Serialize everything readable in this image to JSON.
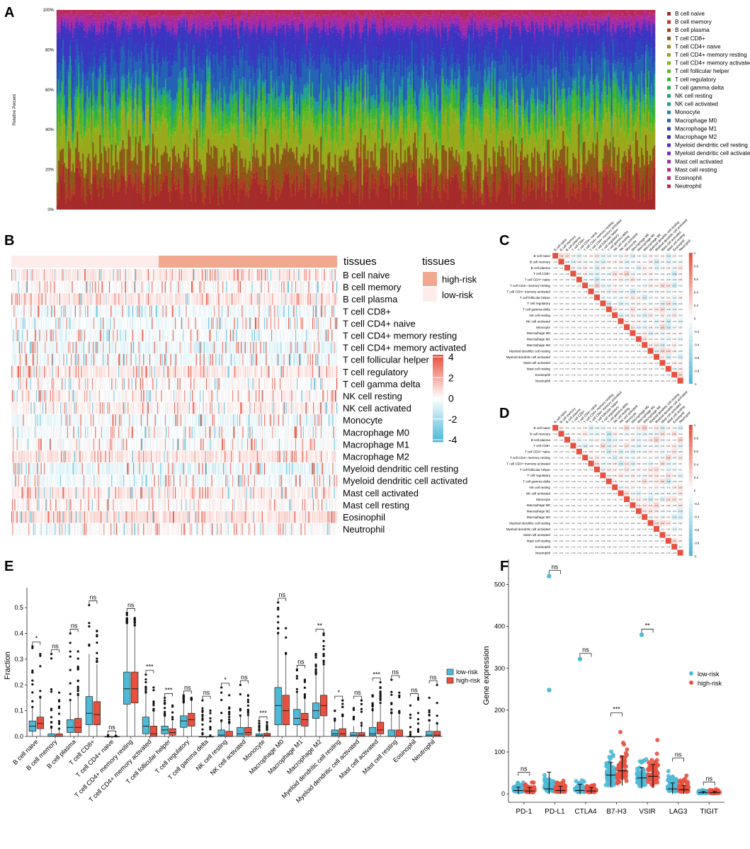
{
  "colors": {
    "low_risk": "#4fb9d6",
    "high_risk": "#e8513f",
    "heat_high": "#e8513f",
    "heat_low": "#4fb9d6",
    "tissue_high": "#f2a78f",
    "tissue_low": "#fdecea"
  },
  "cell_types": [
    "B cell naive",
    "B cell memory",
    "B cell plasma",
    "T cell CD8+",
    "T cell CD4+ naive",
    "T cell CD4+ memory resting",
    "T cell CD4+ memory activated",
    "T cell follicular helper",
    "T cell regulatory",
    "T cell gamma delta",
    "NK cell resting",
    "NK cell activated",
    "Monocyte",
    "Macrophage M0",
    "Macrophage M1",
    "Macrophage M2",
    "Myeloid dendritic cell resting",
    "Myeloid dendritic cell activated",
    "Mast cell activated",
    "Mast cell resting",
    "Eosinophil",
    "Neutrophil"
  ],
  "panels": {
    "a": {
      "label": "A"
    },
    "b": {
      "label": "B",
      "tissues_bar_label": "tissues",
      "legend_title": "tissues",
      "legend_high": "high-risk",
      "legend_low": "low-risk"
    },
    "c": {
      "label": "C"
    },
    "d": {
      "label": "D"
    },
    "e": {
      "label": "E"
    },
    "f": {
      "label": "F"
    }
  },
  "chart_data": [
    {
      "id": "A",
      "type": "bar",
      "subtype": "stacked-100",
      "ylabel": "Relative Percent",
      "yticks": [
        "0%",
        "20%",
        "40%",
        "60%",
        "80%",
        "100%"
      ],
      "ylim": [
        0,
        100
      ],
      "samples": 420,
      "series": [
        {
          "name": "B cell naive",
          "color": "#a52a2a"
        },
        {
          "name": "B cell memory",
          "color": "#b33a23"
        },
        {
          "name": "B cell plasma",
          "color": "#a0461a"
        },
        {
          "name": "T cell CD8+",
          "color": "#8a5a18"
        },
        {
          "name": "T cell CD4+ naive",
          "color": "#a08a18"
        },
        {
          "name": "T cell CD4+ memory resting",
          "color": "#9aa81c"
        },
        {
          "name": "T cell CD4+ memory activated",
          "color": "#86b81e"
        },
        {
          "name": "T cell follicular helper",
          "color": "#5ab828"
        },
        {
          "name": "T cell regulatory",
          "color": "#3cb432"
        },
        {
          "name": "T cell gamma delta",
          "color": "#2aa858"
        },
        {
          "name": "NK cell resting",
          "color": "#22a27c"
        },
        {
          "name": "NK cell activated",
          "color": "#1e9c98"
        },
        {
          "name": "Monocyte",
          "color": "#1e86a8"
        },
        {
          "name": "Macrophage M0",
          "color": "#2462b4"
        },
        {
          "name": "Macrophage M1",
          "color": "#2c44bc"
        },
        {
          "name": "Macrophage M2",
          "color": "#3a34c0"
        },
        {
          "name": "Myeloid dendritic cell resting",
          "color": "#5a2cbe"
        },
        {
          "name": "Myeloid dendritic cell activated",
          "color": "#7c2cba"
        },
        {
          "name": "Mast cell activated",
          "color": "#9a2aae"
        },
        {
          "name": "Mast cell resting",
          "color": "#b02a96"
        },
        {
          "name": "Eosinophil",
          "color": "#bc2a7a"
        },
        {
          "name": "Neutrophil",
          "color": "#b82a52"
        }
      ]
    },
    {
      "id": "B",
      "type": "heatmap",
      "columns": 420,
      "groups": [
        {
          "name": "low-risk",
          "count": 190
        },
        {
          "name": "high-risk",
          "count": 230
        }
      ],
      "scale_ticks": [
        4,
        2,
        0,
        -2,
        -4
      ],
      "rows": "cell_types"
    },
    {
      "id": "C",
      "type": "heatmap",
      "subtype": "correlation-lower-triangle",
      "scale_ticks": [
        "1",
        "0.8",
        "0.6",
        "0.4",
        "0.2",
        "0",
        "-0.2",
        "-0.4",
        "-0.6",
        "-0.8",
        "-1"
      ],
      "rows": "cell_types"
    },
    {
      "id": "D",
      "type": "heatmap",
      "subtype": "correlation-lower-triangle",
      "scale_ticks": [
        "1",
        "0.8",
        "0.6",
        "0.4",
        "0.2",
        "0",
        "-0.2",
        "-0.4",
        "-0.6",
        "-0.8",
        "-1"
      ],
      "rows": "cell_types"
    },
    {
      "id": "E",
      "type": "box",
      "ylabel": "Fraction",
      "ylim": [
        0,
        0.55
      ],
      "yticks": [
        "0.0",
        "0.1",
        "0.2",
        "0.3",
        "0.4",
        "0.5"
      ],
      "legend": [
        "low-risk",
        "high-risk"
      ],
      "categories": [
        "B cell naive",
        "B cell memory",
        "B cell plasma",
        "T cell CD8+",
        "T cell CD4+ naive",
        "T cell CD4+ memory resting",
        "T cell CD4+ memory activated",
        "T cell follicular helper",
        "T cell regulatory",
        "T cell gamma delta",
        "NK cell resting",
        "NK cell activated",
        "Monocyte",
        "Macrophage M0",
        "Macrophage M1",
        "Macrophage M2",
        "Myeloid dendritic cell resting",
        "Myeloid dendritic cell activated",
        "Mast cell activated",
        "Mast cell resting",
        "Eosinophil",
        "Neutrophil"
      ],
      "significance": [
        "*",
        "ns",
        "ns",
        "ns",
        "ns",
        "ns",
        "***",
        "***",
        "ns",
        "ns",
        "*",
        "ns",
        "***",
        "ns",
        "ns",
        "**",
        "*",
        "ns",
        "***",
        "ns",
        "ns",
        "ns"
      ],
      "low": [
        {
          "q1": 0.02,
          "med": 0.04,
          "q3": 0.06,
          "lo": 0.0,
          "hi": 0.11,
          "max": 0.35
        },
        {
          "q1": 0.0,
          "med": 0.0,
          "q3": 0.01,
          "lo": 0.0,
          "hi": 0.03,
          "max": 0.32
        },
        {
          "q1": 0.015,
          "med": 0.035,
          "q3": 0.065,
          "lo": 0.0,
          "hi": 0.14,
          "max": 0.4
        },
        {
          "q1": 0.045,
          "med": 0.09,
          "q3": 0.155,
          "lo": 0.0,
          "hi": 0.32,
          "max": 0.51
        },
        {
          "q1": 0.0,
          "med": 0.0,
          "q3": 0.0,
          "lo": 0.0,
          "hi": 0.0,
          "max": 0.005
        },
        {
          "q1": 0.125,
          "med": 0.185,
          "q3": 0.25,
          "lo": 0.0,
          "hi": 0.44,
          "max": 0.48
        },
        {
          "q1": 0.01,
          "med": 0.04,
          "q3": 0.075,
          "lo": 0.0,
          "hi": 0.17,
          "max": 0.24
        },
        {
          "q1": 0.01,
          "med": 0.025,
          "q3": 0.04,
          "lo": 0.0,
          "hi": 0.08,
          "max": 0.15
        },
        {
          "q1": 0.035,
          "med": 0.06,
          "q3": 0.08,
          "lo": 0.0,
          "hi": 0.13,
          "max": 0.16
        },
        {
          "q1": 0.0,
          "med": 0.0,
          "q3": 0.0,
          "lo": 0.0,
          "hi": 0.0,
          "max": 0.14
        },
        {
          "q1": 0.0,
          "med": 0.005,
          "q3": 0.025,
          "lo": 0.0,
          "hi": 0.06,
          "max": 0.19
        },
        {
          "q1": 0.0,
          "med": 0.01,
          "q3": 0.035,
          "lo": 0.0,
          "hi": 0.08,
          "max": 0.2
        },
        {
          "q1": 0.0,
          "med": 0.003,
          "q3": 0.01,
          "lo": 0.0,
          "hi": 0.02,
          "max": 0.06
        },
        {
          "q1": 0.045,
          "med": 0.12,
          "q3": 0.19,
          "lo": 0.0,
          "hi": 0.4,
          "max": 0.52
        },
        {
          "q1": 0.045,
          "med": 0.07,
          "q3": 0.105,
          "lo": 0.0,
          "hi": 0.17,
          "max": 0.26
        },
        {
          "q1": 0.07,
          "med": 0.1,
          "q3": 0.13,
          "lo": 0.0,
          "hi": 0.24,
          "max": 0.32
        },
        {
          "q1": 0.003,
          "med": 0.01,
          "q3": 0.025,
          "lo": 0.0,
          "hi": 0.06,
          "max": 0.1
        },
        {
          "q1": 0.0,
          "med": 0.005,
          "q3": 0.015,
          "lo": 0.0,
          "hi": 0.04,
          "max": 0.11
        },
        {
          "q1": 0.003,
          "med": 0.01,
          "q3": 0.035,
          "lo": 0.0,
          "hi": 0.1,
          "max": 0.16
        },
        {
          "q1": 0.0,
          "med": 0.0,
          "q3": 0.025,
          "lo": 0.0,
          "hi": 0.09,
          "max": 0.22
        },
        {
          "q1": 0.0,
          "med": 0.0,
          "q3": 0.0,
          "lo": 0.0,
          "hi": 0.0,
          "max": 0.12
        },
        {
          "q1": 0.0,
          "med": 0.005,
          "q3": 0.02,
          "lo": 0.0,
          "hi": 0.05,
          "max": 0.15
        }
      ],
      "high": [
        {
          "q1": 0.03,
          "med": 0.05,
          "q3": 0.075,
          "lo": 0.0,
          "hi": 0.15,
          "max": 0.32
        },
        {
          "q1": 0.0,
          "med": 0.0,
          "q3": 0.01,
          "lo": 0.0,
          "hi": 0.03,
          "max": 0.17
        },
        {
          "q1": 0.015,
          "med": 0.035,
          "q3": 0.07,
          "lo": 0.0,
          "hi": 0.16,
          "max": 0.33
        },
        {
          "q1": 0.045,
          "med": 0.085,
          "q3": 0.135,
          "lo": 0.0,
          "hi": 0.28,
          "max": 0.41
        },
        {
          "q1": 0.0,
          "med": 0.0,
          "q3": 0.0,
          "lo": 0.0,
          "hi": 0.0,
          "max": 0.003
        },
        {
          "q1": 0.13,
          "med": 0.185,
          "q3": 0.25,
          "lo": 0.0,
          "hi": 0.43,
          "max": 0.46
        },
        {
          "q1": 0.0,
          "med": 0.01,
          "q3": 0.04,
          "lo": 0.0,
          "hi": 0.1,
          "max": 0.19
        },
        {
          "q1": 0.005,
          "med": 0.015,
          "q3": 0.03,
          "lo": 0.0,
          "hi": 0.06,
          "max": 0.12
        },
        {
          "q1": 0.04,
          "med": 0.065,
          "q3": 0.09,
          "lo": 0.0,
          "hi": 0.14,
          "max": 0.15
        },
        {
          "q1": 0.0,
          "med": 0.0,
          "q3": 0.0,
          "lo": 0.0,
          "hi": 0.0,
          "max": 0.1
        },
        {
          "q1": 0.0,
          "med": 0.0,
          "q3": 0.02,
          "lo": 0.0,
          "hi": 0.05,
          "max": 0.16
        },
        {
          "q1": 0.005,
          "med": 0.015,
          "q3": 0.035,
          "lo": 0.0,
          "hi": 0.08,
          "max": 0.16
        },
        {
          "q1": 0.0,
          "med": 0.005,
          "q3": 0.012,
          "lo": 0.0,
          "hi": 0.025,
          "max": 0.055
        },
        {
          "q1": 0.045,
          "med": 0.1,
          "q3": 0.16,
          "lo": 0.0,
          "hi": 0.32,
          "max": 0.42
        },
        {
          "q1": 0.04,
          "med": 0.065,
          "q3": 0.09,
          "lo": 0.0,
          "hi": 0.15,
          "max": 0.22
        },
        {
          "q1": 0.08,
          "med": 0.12,
          "q3": 0.16,
          "lo": 0.0,
          "hi": 0.28,
          "max": 0.4
        },
        {
          "q1": 0.0,
          "med": 0.01,
          "q3": 0.03,
          "lo": 0.0,
          "hi": 0.07,
          "max": 0.14
        },
        {
          "q1": 0.0,
          "med": 0.005,
          "q3": 0.015,
          "lo": 0.0,
          "hi": 0.04,
          "max": 0.14
        },
        {
          "q1": 0.01,
          "med": 0.025,
          "q3": 0.055,
          "lo": 0.0,
          "hi": 0.13,
          "max": 0.21
        },
        {
          "q1": 0.0,
          "med": 0.0,
          "q3": 0.025,
          "lo": 0.0,
          "hi": 0.09,
          "max": 0.17
        },
        {
          "q1": 0.0,
          "med": 0.0,
          "q3": 0.0,
          "lo": 0.0,
          "hi": 0.0,
          "max": 0.15
        },
        {
          "q1": 0.0,
          "med": 0.005,
          "q3": 0.02,
          "lo": 0.0,
          "hi": 0.05,
          "max": 0.2
        }
      ]
    },
    {
      "id": "F",
      "type": "scatter",
      "subtype": "jitter-with-mean-sd",
      "ylabel": "Gene expression",
      "ylim": [
        -20,
        560
      ],
      "yticks": [
        "0",
        "100",
        "200",
        "300",
        "400",
        "500"
      ],
      "legend": [
        "low-risk",
        "high-risk"
      ],
      "categories": [
        "PD-1",
        "PD-L1",
        "CTLA4",
        "B7-H3",
        "VSIR",
        "LAG3",
        "TIGIT"
      ],
      "significance": [
        "ns",
        "ns",
        "ns",
        "***",
        "**",
        "ns",
        "ns"
      ],
      "low": [
        {
          "mean": 8,
          "sd": 8,
          "spread": 30,
          "outliers": []
        },
        {
          "mean": 12,
          "sd": 40,
          "spread": 50,
          "outliers": [
            248,
            520
          ]
        },
        {
          "mean": 8,
          "sd": 15,
          "spread": 40,
          "outliers": [
            322
          ]
        },
        {
          "mean": 45,
          "sd": 30,
          "spread": 110,
          "outliers": []
        },
        {
          "mean": 38,
          "sd": 25,
          "spread": 100,
          "outliers": [
            380
          ]
        },
        {
          "mean": 12,
          "sd": 14,
          "spread": 60,
          "outliers": []
        },
        {
          "mean": 3,
          "sd": 3,
          "spread": 10,
          "outliers": []
        }
      ],
      "high": [
        {
          "mean": 7,
          "sd": 8,
          "spread": 30,
          "outliers": []
        },
        {
          "mean": 8,
          "sd": 10,
          "spread": 35,
          "outliers": []
        },
        {
          "mean": 7,
          "sd": 8,
          "spread": 28,
          "outliers": []
        },
        {
          "mean": 55,
          "sd": 35,
          "spread": 125,
          "outliers": []
        },
        {
          "mean": 42,
          "sd": 28,
          "spread": 110,
          "outliers": []
        },
        {
          "mean": 10,
          "sd": 10,
          "spread": 50,
          "outliers": []
        },
        {
          "mean": 3,
          "sd": 3,
          "spread": 12,
          "outliers": []
        }
      ]
    }
  ]
}
